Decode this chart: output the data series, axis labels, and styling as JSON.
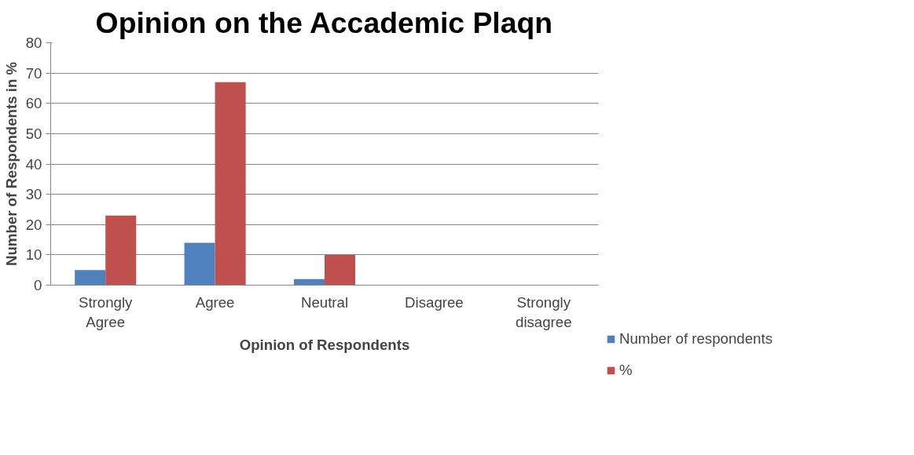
{
  "chart_data": {
    "type": "bar",
    "title": "Opinion on the Accademic Plaqn",
    "xlabel": "Opinion of Respondents",
    "ylabel": "Number of Respondents in %",
    "categories": [
      "Strongly\nAgree",
      "Agree",
      "Neutral",
      "Disagree",
      "Strongly\ndisagree"
    ],
    "series": [
      {
        "name": "Number of respondents",
        "color": "#4f81bd",
        "values": [
          5,
          14,
          2,
          0,
          0
        ]
      },
      {
        "name": "%",
        "color": "#c0504d",
        "values": [
          23,
          67,
          10,
          0,
          0
        ]
      }
    ],
    "ylim": [
      0,
      80
    ],
    "yticks": [
      0,
      10,
      20,
      30,
      40,
      50,
      60,
      70,
      80
    ],
    "grid": "y",
    "legend": "right"
  }
}
